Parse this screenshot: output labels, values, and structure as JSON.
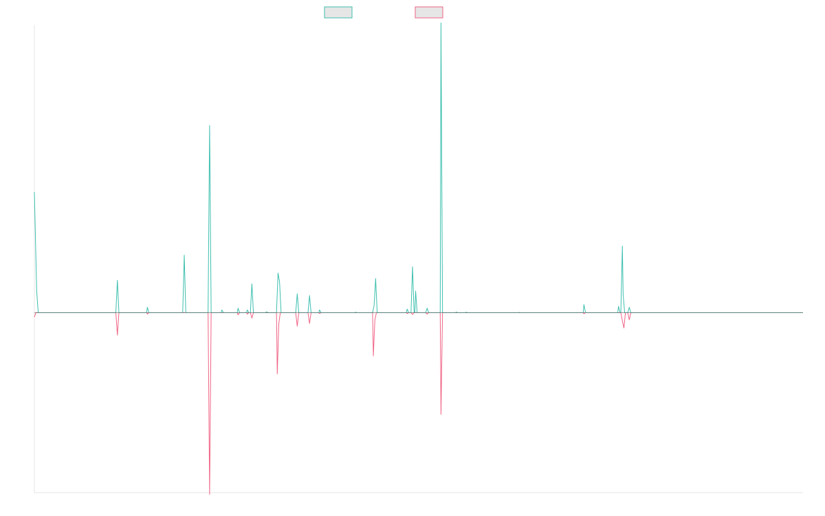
{
  "chart_data": {
    "type": "line",
    "legend_placement": "top-center",
    "grid": false,
    "ylim": [
      -100,
      160
    ],
    "xlim": [
      0,
      100
    ],
    "colors": {
      "series_up": "#3cbfae",
      "series_down": "#f06384",
      "legend_fill": "#e6e6e6",
      "axis": "#e6e6e6",
      "baseline": "#666666"
    },
    "series": [
      {
        "key": "up",
        "points": [
          [
            0,
            67
          ],
          [
            0.3,
            12
          ],
          [
            0.5,
            0
          ],
          [
            10.6,
            0
          ],
          [
            10.8,
            18
          ],
          [
            11.0,
            0
          ],
          [
            14.6,
            0
          ],
          [
            14.7,
            3
          ],
          [
            14.9,
            0
          ],
          [
            19.3,
            0
          ],
          [
            19.5,
            32
          ],
          [
            19.7,
            0
          ],
          [
            22.6,
            0
          ],
          [
            22.8,
            104
          ],
          [
            23.0,
            0
          ],
          [
            24.3,
            0
          ],
          [
            24.4,
            1.5
          ],
          [
            24.6,
            0
          ],
          [
            26.4,
            0
          ],
          [
            26.5,
            2.5
          ],
          [
            26.7,
            0
          ],
          [
            27.6,
            0
          ],
          [
            27.7,
            1.5
          ],
          [
            27.9,
            0
          ],
          [
            28.1,
            0
          ],
          [
            28.3,
            16
          ],
          [
            28.5,
            0
          ],
          [
            30.1,
            0
          ],
          [
            30.2,
            0.5
          ],
          [
            30.4,
            0
          ],
          [
            31.5,
            0
          ],
          [
            31.7,
            22
          ],
          [
            31.9,
            17
          ],
          [
            32.1,
            0
          ],
          [
            34.0,
            0
          ],
          [
            34.2,
            10.5
          ],
          [
            34.4,
            0
          ],
          [
            35.6,
            0
          ],
          [
            35.8,
            9.5
          ],
          [
            36.0,
            0
          ],
          [
            37.0,
            0
          ],
          [
            37.1,
            1.5
          ],
          [
            37.3,
            0
          ],
          [
            41.7,
            0
          ],
          [
            41.8,
            0.3
          ],
          [
            41.9,
            0
          ],
          [
            44.0,
            0
          ],
          [
            44.2,
            4
          ],
          [
            44.4,
            19
          ],
          [
            44.6,
            0
          ],
          [
            48.4,
            0
          ],
          [
            48.5,
            2
          ],
          [
            48.7,
            0
          ],
          [
            49.0,
            0
          ],
          [
            49.2,
            25.5
          ],
          [
            49.4,
            0
          ],
          [
            49.5,
            0
          ],
          [
            49.6,
            12
          ],
          [
            49.8,
            0
          ],
          [
            50.9,
            0
          ],
          [
            51.1,
            2.5
          ],
          [
            51.3,
            0
          ],
          [
            52.8,
            0
          ],
          [
            52.9,
            161
          ],
          [
            53.1,
            0
          ],
          [
            54.8,
            0
          ],
          [
            54.9,
            0.4
          ],
          [
            55.0,
            0
          ],
          [
            56.1,
            0
          ],
          [
            56.2,
            0.3
          ],
          [
            56.3,
            0
          ],
          [
            63.0,
            0
          ],
          [
            63.1,
            0.2
          ],
          [
            63.2,
            0
          ],
          [
            71.4,
            0
          ],
          [
            71.5,
            4.5
          ],
          [
            71.7,
            0
          ],
          [
            75.9,
            0
          ],
          [
            76.0,
            3.5
          ],
          [
            76.2,
            0
          ],
          [
            76.3,
            0
          ],
          [
            76.5,
            37
          ],
          [
            76.6,
            10
          ],
          [
            76.8,
            0
          ],
          [
            77.2,
            0
          ],
          [
            77.4,
            3
          ],
          [
            77.6,
            0
          ],
          [
            100,
            0
          ]
        ]
      },
      {
        "key": "down",
        "points": [
          [
            0,
            -2.5
          ],
          [
            0.2,
            0
          ],
          [
            10.6,
            0
          ],
          [
            10.8,
            -12.5
          ],
          [
            11.0,
            0
          ],
          [
            14.6,
            0
          ],
          [
            14.7,
            -0.8
          ],
          [
            14.9,
            0
          ],
          [
            22.6,
            0
          ],
          [
            22.8,
            -101
          ],
          [
            23.0,
            0
          ],
          [
            26.4,
            0
          ],
          [
            26.5,
            -1.2
          ],
          [
            26.7,
            0
          ],
          [
            27.6,
            0
          ],
          [
            27.7,
            -0.8
          ],
          [
            27.9,
            0
          ],
          [
            28.1,
            0
          ],
          [
            28.3,
            -3
          ],
          [
            28.5,
            0
          ],
          [
            31.5,
            0
          ],
          [
            31.6,
            -34
          ],
          [
            31.8,
            -6
          ],
          [
            32.0,
            0
          ],
          [
            34.0,
            0
          ],
          [
            34.2,
            -7.5
          ],
          [
            34.4,
            0
          ],
          [
            35.6,
            0
          ],
          [
            35.8,
            -6
          ],
          [
            36.0,
            0
          ],
          [
            37.0,
            0
          ],
          [
            37.1,
            -0.5
          ],
          [
            37.3,
            0
          ],
          [
            44.0,
            0
          ],
          [
            44.1,
            -24
          ],
          [
            44.3,
            -4
          ],
          [
            44.5,
            0
          ],
          [
            48.4,
            0
          ],
          [
            48.5,
            -0.5
          ],
          [
            48.7,
            0
          ],
          [
            49.0,
            0
          ],
          [
            49.2,
            -1
          ],
          [
            49.4,
            0
          ],
          [
            50.9,
            0
          ],
          [
            51.1,
            -0.8
          ],
          [
            51.3,
            0
          ],
          [
            52.8,
            0
          ],
          [
            52.9,
            -56.5
          ],
          [
            53.1,
            0
          ],
          [
            71.4,
            0
          ],
          [
            71.5,
            -0.6
          ],
          [
            71.7,
            0
          ],
          [
            76.3,
            0
          ],
          [
            76.5,
            -4.5
          ],
          [
            76.7,
            -8.5
          ],
          [
            76.9,
            0
          ],
          [
            77.2,
            0
          ],
          [
            77.4,
            -4
          ],
          [
            77.6,
            0
          ],
          [
            100,
            0
          ]
        ]
      }
    ]
  }
}
